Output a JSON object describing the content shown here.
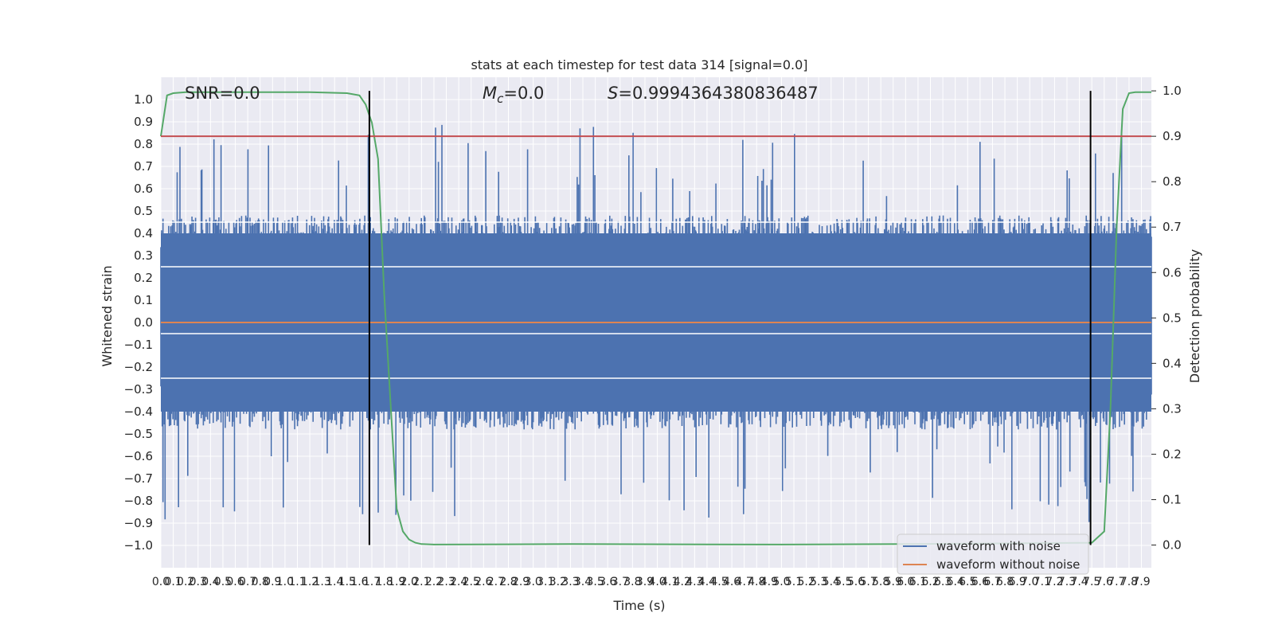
{
  "chart_data": {
    "type": "line",
    "title": "stats at each timestep for test data 314 [signal=0.0]",
    "xlabel": "Time (s)",
    "ylabel_left": "Whitened strain",
    "ylabel_right": "Detection probability",
    "xlim": [
      0.0,
      7.98
    ],
    "ylim_left": [
      -1.1,
      1.1
    ],
    "ylim_right": [
      -0.05,
      1.03
    ],
    "xticks": [
      0.0,
      0.1,
      0.2,
      0.3,
      0.4,
      0.5,
      0.6,
      0.7,
      0.8,
      0.9,
      1.0,
      1.1,
      1.2,
      1.3,
      1.4,
      1.5,
      1.6,
      1.7,
      1.8,
      1.9,
      2.0,
      2.1,
      2.2,
      2.3,
      2.4,
      2.5,
      2.6,
      2.7,
      2.8,
      2.9,
      3.0,
      3.1,
      3.2,
      3.3,
      3.4,
      3.5,
      3.6,
      3.7,
      3.8,
      3.9,
      4.0,
      4.1,
      4.2,
      4.3,
      4.4,
      4.5,
      4.6,
      4.7,
      4.8,
      4.9,
      5.0,
      5.1,
      5.2,
      5.3,
      5.4,
      5.5,
      5.6,
      5.7,
      5.8,
      5.9,
      6.0,
      6.1,
      6.2,
      6.3,
      6.4,
      6.5,
      6.6,
      6.7,
      6.8,
      6.9,
      7.0,
      7.1,
      7.2,
      7.3,
      7.4,
      7.5,
      7.6,
      7.7,
      7.8,
      7.9
    ],
    "yticks_left": [
      -1.0,
      -0.9,
      -0.8,
      -0.7,
      -0.6,
      -0.5,
      -0.4,
      -0.3,
      -0.2,
      -0.1,
      0.0,
      0.1,
      0.2,
      0.3,
      0.4,
      0.5,
      0.6,
      0.7,
      0.8,
      0.9,
      1.0
    ],
    "yticks_right": [
      0.0,
      0.1,
      0.2,
      0.3,
      0.4,
      0.5,
      0.6,
      0.7,
      0.8,
      0.9,
      1.0
    ],
    "grid": true,
    "legend_position": "lower-right",
    "series": [
      {
        "name": "waveform with noise",
        "axis": "left",
        "color": "#4c72b0",
        "description": "dense noise trace, bulk amplitude within about ±0.45, occasional spikes to about ±0.95"
      },
      {
        "name": "waveform without noise",
        "axis": "left",
        "color": "#dd8452",
        "x": [
          0.0,
          7.98
        ],
        "y": [
          0.0,
          0.0
        ]
      },
      {
        "name": "",
        "axis": "right",
        "color": "#55a868",
        "x": [
          0.0,
          0.05,
          0.1,
          0.2,
          0.4,
          0.8,
          1.2,
          1.5,
          1.6,
          1.65,
          1.7,
          1.75,
          1.8,
          1.9,
          1.95,
          2.0,
          2.05,
          2.1,
          2.2,
          3.3,
          5.0,
          6.0,
          7.5,
          7.6,
          7.65,
          7.7,
          7.75,
          7.8,
          7.85,
          7.9,
          7.98
        ],
        "y": [
          0.9,
          0.99,
          0.995,
          0.997,
          0.997,
          0.997,
          0.997,
          0.995,
          0.99,
          0.97,
          0.93,
          0.85,
          0.55,
          0.08,
          0.03,
          0.012,
          0.005,
          0.002,
          0.001,
          0.002,
          0.001,
          0.002,
          0.005,
          0.03,
          0.3,
          0.7,
          0.96,
          0.995,
          0.997,
          0.997,
          0.997
        ]
      },
      {
        "name": "",
        "axis": "right",
        "color": "#c44e52",
        "x": [
          0.0,
          7.98
        ],
        "y": [
          0.9,
          0.9
        ]
      }
    ],
    "vlines": [
      1.68,
      7.49
    ],
    "vline_color": "#000000",
    "annotations": [
      {
        "text": "SNR=0.0"
      },
      {
        "text": "M",
        "sub": "c",
        "suffix": "=0.0"
      },
      {
        "text": "S",
        "suffix": "=0.9994364380836487"
      }
    ]
  }
}
